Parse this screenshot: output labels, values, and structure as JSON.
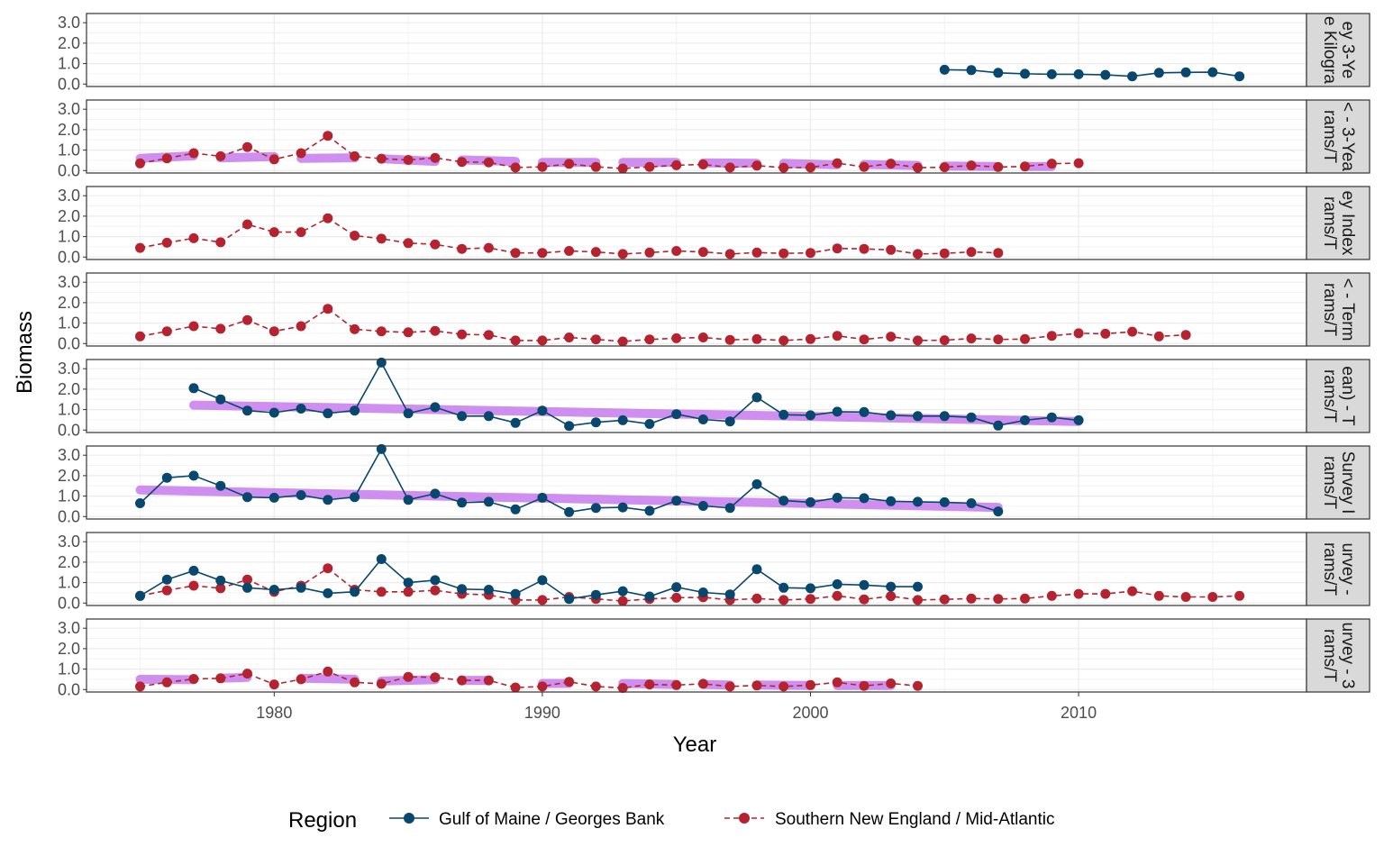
{
  "chart_data": {
    "type": "line",
    "xlabel": "Year",
    "ylabel": "Biomass",
    "x_ticks": [
      1980,
      1990,
      2000,
      2010
    ],
    "y_ticks": [
      "0.0",
      "1.0",
      "2.0",
      "3.0"
    ],
    "xlim": [
      1973,
      2018.5
    ],
    "ylim": [
      -0.12,
      3.45
    ],
    "legend_title": "Region",
    "legend_position": "bottom",
    "series_styles": [
      {
        "name": "Gulf of Maine / Georges Bank",
        "color": "#08476e",
        "dash": "solid"
      },
      {
        "name": "Southern New England / Mid-Atlantic",
        "color": "#b4232f",
        "dash": "dashed"
      }
    ],
    "trend_color": "#c983ee",
    "panels": [
      {
        "strip_label": "ey 3-Ye\ne Kilogra",
        "gom": {
          "x": [
            2005,
            2006,
            2007,
            2008,
            2009,
            2010,
            2011,
            2012,
            2013,
            2014,
            2015,
            2016
          ],
          "y": [
            0.7,
            0.68,
            0.55,
            0.5,
            0.48,
            0.48,
            0.45,
            0.38,
            0.55,
            0.57,
            0.58,
            0.38
          ]
        },
        "sne": null,
        "trends": []
      },
      {
        "strip_label": "< - 3-Yea\nrams/T",
        "gom": null,
        "sne": {
          "x": [
            1975,
            1976,
            1977,
            1978,
            1979,
            1980,
            1981,
            1982,
            1983,
            1984,
            1985,
            1986,
            1987,
            1988,
            1989,
            1990,
            1991,
            1992,
            1993,
            1994,
            1995,
            1996,
            1997,
            1998,
            1999,
            2000,
            2001,
            2002,
            2003,
            2004,
            2005,
            2006,
            2007,
            2008,
            2009,
            2010
          ],
          "y": [
            0.35,
            0.6,
            0.85,
            0.7,
            1.15,
            0.55,
            0.85,
            1.7,
            0.7,
            0.58,
            0.52,
            0.62,
            0.42,
            0.4,
            0.15,
            0.18,
            0.33,
            0.18,
            0.1,
            0.18,
            0.26,
            0.3,
            0.15,
            0.24,
            0.14,
            0.15,
            0.36,
            0.18,
            0.34,
            0.14,
            0.16,
            0.25,
            0.17,
            0.2,
            0.34,
            0.36
          ]
        },
        "trends": [
          {
            "x": [
              1975,
              1977
            ],
            "y": [
              0.6,
              0.72
            ]
          },
          {
            "x": [
              1978,
              1980
            ],
            "y": [
              0.62,
              0.68
            ]
          },
          {
            "x": [
              1981,
              1983
            ],
            "y": [
              0.6,
              0.62
            ]
          },
          {
            "x": [
              1984,
              1986
            ],
            "y": [
              0.58,
              0.45
            ]
          },
          {
            "x": [
              1987,
              1989
            ],
            "y": [
              0.52,
              0.45
            ]
          },
          {
            "x": [
              1990,
              1992
            ],
            "y": [
              0.4,
              0.4
            ]
          },
          {
            "x": [
              1993,
              1995
            ],
            "y": [
              0.4,
              0.4
            ]
          },
          {
            "x": [
              1996,
              1998
            ],
            "y": [
              0.38,
              0.35
            ]
          },
          {
            "x": [
              1999,
              2001
            ],
            "y": [
              0.35,
              0.28
            ]
          },
          {
            "x": [
              2002,
              2004
            ],
            "y": [
              0.3,
              0.25
            ]
          },
          {
            "x": [
              2005,
              2007
            ],
            "y": [
              0.22,
              0.2
            ]
          },
          {
            "x": [
              2008,
              2009
            ],
            "y": [
              0.2,
              0.2
            ]
          }
        ]
      },
      {
        "strip_label": "ey Index\nrams/T",
        "gom": null,
        "sne": {
          "x": [
            1975,
            1976,
            1977,
            1978,
            1979,
            1980,
            1981,
            1982,
            1983,
            1984,
            1985,
            1986,
            1987,
            1988,
            1989,
            1990,
            1991,
            1992,
            1993,
            1994,
            1995,
            1996,
            1997,
            1998,
            1999,
            2000,
            2001,
            2002,
            2003,
            2004,
            2005,
            2006,
            2007
          ],
          "y": [
            0.45,
            0.7,
            0.92,
            0.72,
            1.6,
            1.22,
            1.22,
            1.9,
            1.05,
            0.9,
            0.68,
            0.62,
            0.4,
            0.45,
            0.2,
            0.2,
            0.3,
            0.25,
            0.15,
            0.22,
            0.3,
            0.25,
            0.15,
            0.22,
            0.18,
            0.2,
            0.42,
            0.4,
            0.35,
            0.15,
            0.18,
            0.25,
            0.2
          ]
        },
        "trends": []
      },
      {
        "strip_label": "< - Term\nrams/T",
        "gom": null,
        "sne": {
          "x": [
            1975,
            1976,
            1977,
            1978,
            1979,
            1980,
            1981,
            1982,
            1983,
            1984,
            1985,
            1986,
            1987,
            1988,
            1989,
            1990,
            1991,
            1992,
            1993,
            1994,
            1995,
            1996,
            1997,
            1998,
            1999,
            2000,
            2001,
            2002,
            2003,
            2004,
            2005,
            2006,
            2007,
            2008,
            2009,
            2010,
            2011,
            2012,
            2013,
            2014
          ],
          "y": [
            0.35,
            0.6,
            0.85,
            0.72,
            1.15,
            0.6,
            0.85,
            1.7,
            0.7,
            0.6,
            0.55,
            0.62,
            0.45,
            0.42,
            0.15,
            0.15,
            0.3,
            0.2,
            0.1,
            0.2,
            0.26,
            0.3,
            0.18,
            0.22,
            0.15,
            0.22,
            0.38,
            0.2,
            0.34,
            0.15,
            0.16,
            0.25,
            0.2,
            0.22,
            0.38,
            0.5,
            0.48,
            0.58,
            0.35,
            0.42
          ]
        },
        "trends": []
      },
      {
        "strip_label": "ean) - T\nrams/T",
        "gom": {
          "x": [
            1977,
            1978,
            1979,
            1980,
            1981,
            1982,
            1983,
            1984,
            1985,
            1986,
            1987,
            1988,
            1989,
            1990,
            1991,
            1992,
            1993,
            1994,
            1995,
            1996,
            1997,
            1998,
            1999,
            2000,
            2001,
            2002,
            2003,
            2004,
            2005,
            2006,
            2007,
            2008,
            2009,
            2010
          ],
          "y": [
            2.05,
            1.5,
            0.95,
            0.85,
            1.05,
            0.82,
            0.95,
            3.3,
            0.82,
            1.12,
            0.68,
            0.68,
            0.35,
            0.95,
            0.2,
            0.38,
            0.48,
            0.3,
            0.78,
            0.52,
            0.42,
            1.6,
            0.75,
            0.72,
            0.9,
            0.88,
            0.72,
            0.68,
            0.68,
            0.62,
            0.22,
            0.48,
            0.62,
            0.48
          ]
        },
        "sne": null,
        "trends": [
          {
            "x": [
              1977,
              2010
            ],
            "y": [
              1.22,
              0.42
            ]
          }
        ]
      },
      {
        "strip_label": "Survey I\nrams/T",
        "gom": {
          "x": [
            1975,
            1976,
            1977,
            1978,
            1979,
            1980,
            1981,
            1982,
            1983,
            1984,
            1985,
            1986,
            1987,
            1988,
            1989,
            1990,
            1991,
            1992,
            1993,
            1994,
            1995,
            1996,
            1997,
            1998,
            1999,
            2000,
            2001,
            2002,
            2003,
            2004,
            2005,
            2006,
            2007
          ],
          "y": [
            0.65,
            1.9,
            2.0,
            1.5,
            0.95,
            0.92,
            1.05,
            0.82,
            0.95,
            3.3,
            0.82,
            1.12,
            0.68,
            0.72,
            0.35,
            0.92,
            0.22,
            0.42,
            0.45,
            0.28,
            0.78,
            0.52,
            0.42,
            1.58,
            0.78,
            0.7,
            0.92,
            0.9,
            0.75,
            0.72,
            0.7,
            0.65,
            0.25
          ]
        },
        "sne": null,
        "trends": [
          {
            "x": [
              1975,
              2007
            ],
            "y": [
              1.3,
              0.45
            ]
          }
        ]
      },
      {
        "strip_label": "urvey -\nrams/T",
        "gom": {
          "x": [
            1975,
            1976,
            1977,
            1978,
            1979,
            1980,
            1981,
            1982,
            1983,
            1984,
            1985,
            1986,
            1987,
            1988,
            1989,
            1990,
            1991,
            1992,
            1993,
            1994,
            1995,
            1996,
            1997,
            1998,
            1999,
            2000,
            2001,
            2002,
            2003,
            2004
          ],
          "y": [
            0.35,
            1.15,
            1.58,
            1.1,
            0.75,
            0.65,
            0.75,
            0.48,
            0.55,
            2.15,
            1.0,
            1.12,
            0.68,
            0.65,
            0.45,
            1.12,
            0.2,
            0.4,
            0.58,
            0.32,
            0.78,
            0.52,
            0.42,
            1.65,
            0.75,
            0.72,
            0.92,
            0.88,
            0.8,
            0.8
          ]
        },
        "sne": {
          "x": [
            1975,
            1976,
            1977,
            1978,
            1979,
            1980,
            1981,
            1982,
            1983,
            1984,
            1985,
            1986,
            1987,
            1988,
            1989,
            1990,
            1991,
            1992,
            1993,
            1994,
            1995,
            1996,
            1997,
            1998,
            1999,
            2000,
            2001,
            2002,
            2003,
            2004,
            2005,
            2006,
            2007,
            2008,
            2009,
            2010,
            2011,
            2012,
            2013,
            2014,
            2015,
            2016
          ],
          "y": [
            0.35,
            0.62,
            0.85,
            0.72,
            1.15,
            0.55,
            0.85,
            1.7,
            0.65,
            0.55,
            0.55,
            0.62,
            0.45,
            0.4,
            0.15,
            0.15,
            0.3,
            0.2,
            0.1,
            0.2,
            0.26,
            0.28,
            0.15,
            0.22,
            0.15,
            0.2,
            0.35,
            0.18,
            0.34,
            0.15,
            0.18,
            0.22,
            0.2,
            0.22,
            0.35,
            0.45,
            0.45,
            0.58,
            0.35,
            0.3,
            0.3,
            0.35
          ]
        },
        "trends": []
      },
      {
        "strip_label": "urvey - 3\nrams/T",
        "gom": null,
        "sne": {
          "x": [
            1975,
            1976,
            1977,
            1978,
            1979,
            1980,
            1981,
            1982,
            1983,
            1984,
            1985,
            1986,
            1987,
            1988,
            1989,
            1990,
            1991,
            1992,
            1993,
            1994,
            1995,
            1996,
            1997,
            1998,
            1999,
            2000,
            2001,
            2002,
            2003,
            2004
          ],
          "y": [
            0.15,
            0.35,
            0.52,
            0.55,
            0.78,
            0.25,
            0.5,
            0.88,
            0.35,
            0.28,
            0.62,
            0.6,
            0.45,
            0.45,
            0.1,
            0.15,
            0.38,
            0.15,
            0.08,
            0.25,
            0.22,
            0.28,
            0.15,
            0.2,
            0.15,
            0.22,
            0.35,
            0.18,
            0.3,
            0.18
          ]
        },
        "trends": [
          {
            "x": [
              1975,
              1977
            ],
            "y": [
              0.5,
              0.48
            ]
          },
          {
            "x": [
              1978,
              1979
            ],
            "y": [
              0.55,
              0.6
            ]
          },
          {
            "x": [
              1981,
              1983
            ],
            "y": [
              0.55,
              0.5
            ]
          },
          {
            "x": [
              1984,
              1986
            ],
            "y": [
              0.42,
              0.48
            ]
          },
          {
            "x": [
              1987,
              1988
            ],
            "y": [
              0.45,
              0.45
            ]
          },
          {
            "x": [
              1990,
              1991
            ],
            "y": [
              0.3,
              0.3
            ]
          },
          {
            "x": [
              1993,
              1995
            ],
            "y": [
              0.3,
              0.25
            ]
          },
          {
            "x": [
              1996,
              1997
            ],
            "y": [
              0.25,
              0.22
            ]
          },
          {
            "x": [
              1998,
              2000
            ],
            "y": [
              0.22,
              0.2
            ]
          },
          {
            "x": [
              2001,
              2003
            ],
            "y": [
              0.2,
              0.2
            ]
          }
        ]
      }
    ]
  }
}
